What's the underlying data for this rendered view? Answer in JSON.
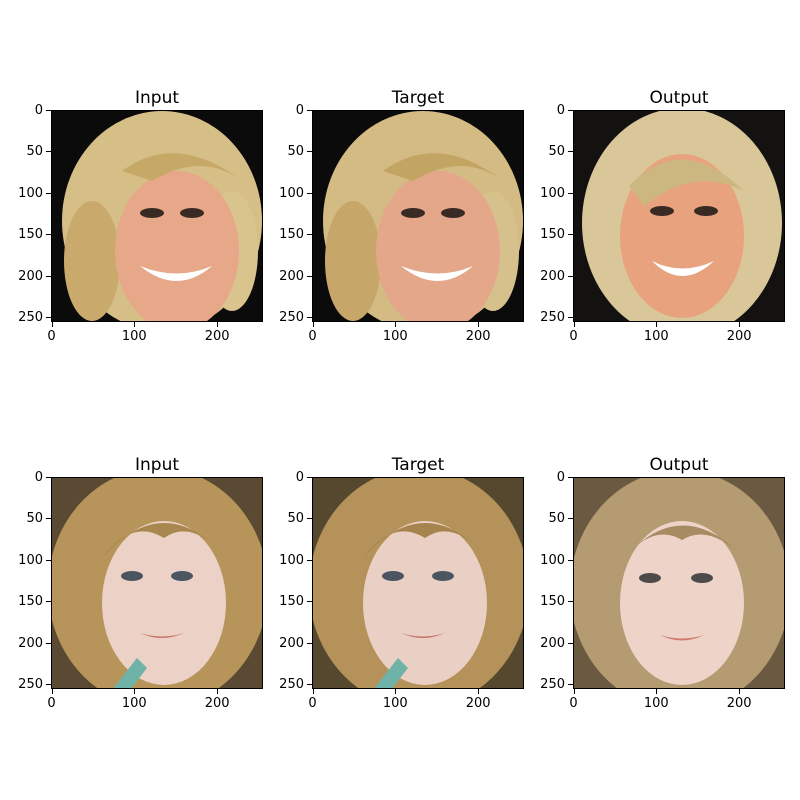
{
  "rows": [
    {
      "panels": [
        {
          "title": "Input"
        },
        {
          "title": "Target"
        },
        {
          "title": "Output"
        }
      ]
    },
    {
      "panels": [
        {
          "title": "Input"
        },
        {
          "title": "Target"
        },
        {
          "title": "Output"
        }
      ]
    }
  ],
  "axis": {
    "yticks": [
      "0",
      "50",
      "100",
      "150",
      "200",
      "250"
    ],
    "xticks": [
      "0",
      "100",
      "200"
    ]
  },
  "colors": {
    "row1_background": "#0b0b0b",
    "row1_hair": "#d6bf86",
    "row1_skin": "#e6a889",
    "row2_background": "#5a4a33",
    "row2_hair": "#b7955a",
    "row2_skin": "#ecd1c7"
  }
}
